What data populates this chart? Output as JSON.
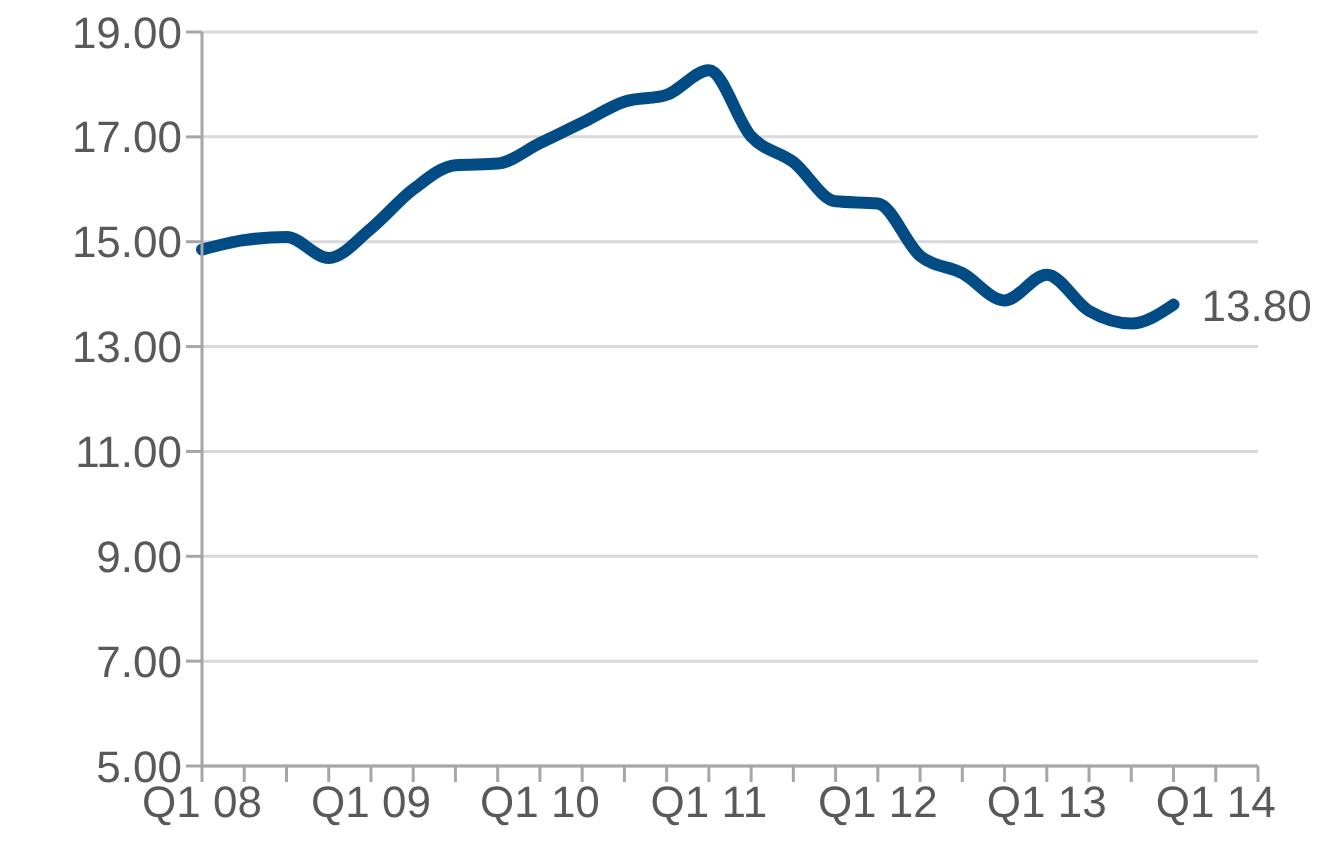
{
  "chart_data": {
    "type": "line",
    "categories": [
      "Q1 08",
      null,
      null,
      null,
      "Q1 09",
      null,
      null,
      null,
      "Q1 10",
      null,
      null,
      null,
      "Q1 11",
      null,
      null,
      null,
      "Q1 12",
      null,
      null,
      null,
      "Q1 13",
      null,
      null,
      null,
      "Q1 14",
      null
    ],
    "series": [
      {
        "color": "#024c86",
        "values": [
          14.85,
          15.03,
          15.09,
          14.69,
          15.25,
          16.0,
          16.46,
          16.49,
          16.88,
          17.27,
          17.67,
          17.8,
          18.27,
          17.01,
          16.52,
          15.77,
          15.73,
          14.73,
          14.4,
          13.88,
          14.37,
          13.68,
          13.44,
          13.8,
          null,
          null
        ],
        "value_labels": [
          null,
          null,
          null,
          null,
          null,
          null,
          null,
          null,
          null,
          null,
          null,
          null,
          null,
          null,
          null,
          null,
          null,
          null,
          null,
          null,
          null,
          null,
          null,
          "13.80",
          null,
          null
        ]
      }
    ],
    "ylim": [
      5,
      19
    ],
    "yticks": [
      {
        "value": 5,
        "label": "5.00"
      },
      {
        "value": 7,
        "label": "7.00"
      },
      {
        "value": 9,
        "label": "9.00"
      },
      {
        "value": 11,
        "label": "11.00"
      },
      {
        "value": 13,
        "label": "13.00"
      },
      {
        "value": 15,
        "label": "15.00"
      },
      {
        "value": 17,
        "label": "17.00"
      },
      {
        "value": 19,
        "label": "19.00"
      }
    ],
    "grid": "y",
    "marker": "none",
    "line_style": "solid"
  }
}
